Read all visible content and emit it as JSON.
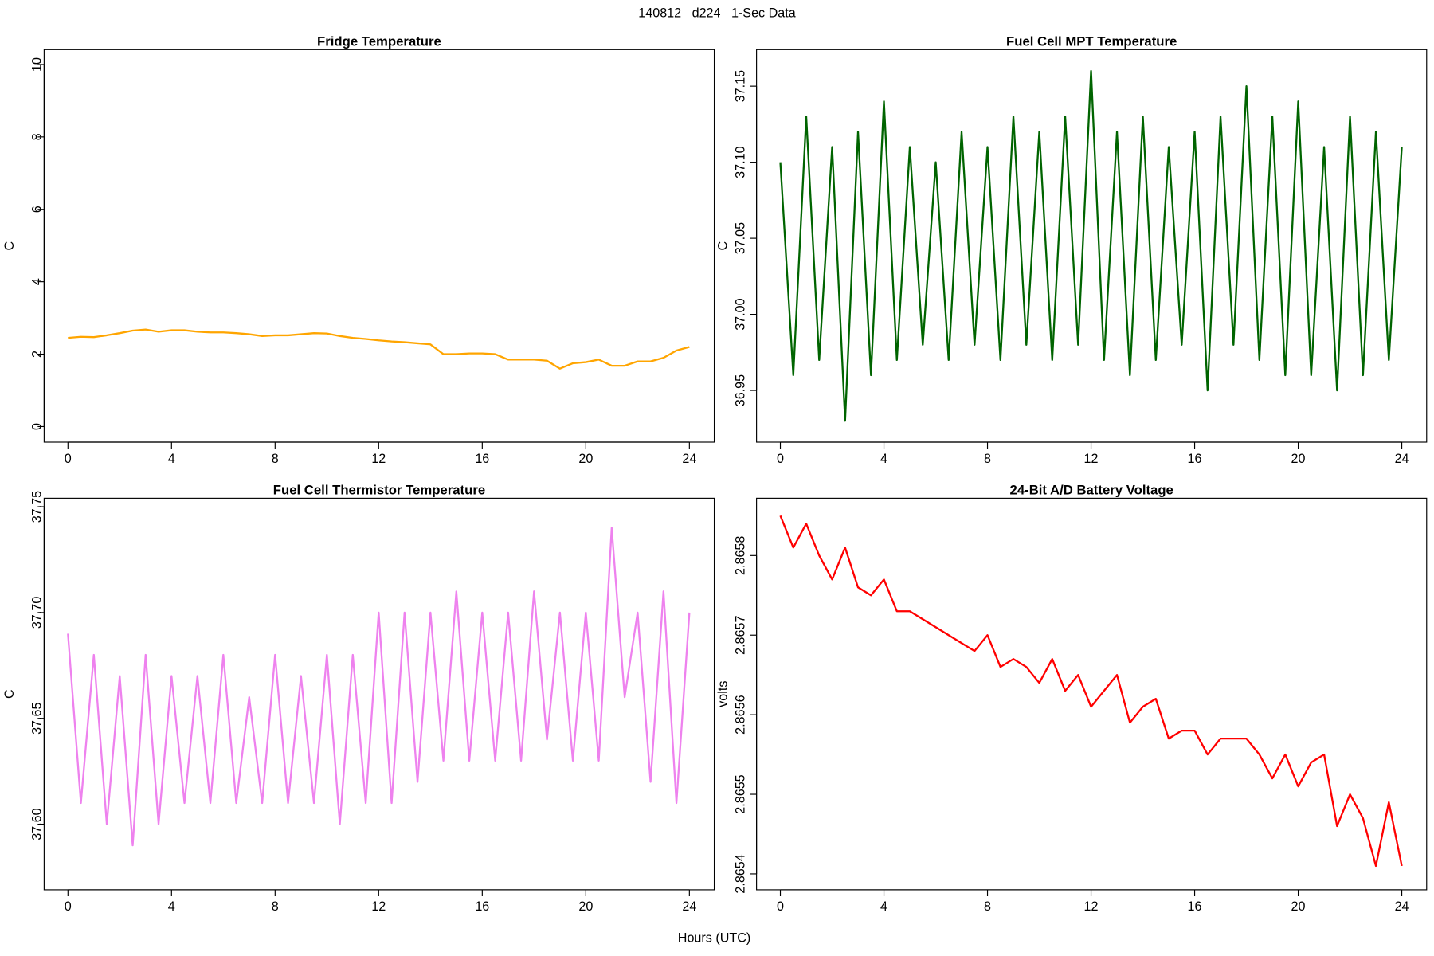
{
  "title": "140812   d224   1-Sec Data",
  "xlabel": "Hours (UTC)",
  "chart_data": [
    {
      "type": "line",
      "title": "Fridge Temperature",
      "ylabel": "C",
      "color": "#ffa500",
      "x": [
        0,
        0.5,
        1,
        1.5,
        2,
        2.5,
        3,
        3.5,
        4,
        4.5,
        5,
        5.5,
        6,
        6.5,
        7,
        7.5,
        8,
        8.5,
        9,
        9.5,
        10,
        10.5,
        11,
        11.5,
        12,
        12.5,
        13,
        13.5,
        14,
        14.5,
        15,
        15.5,
        16,
        16.5,
        17,
        17.5,
        18,
        18.5,
        19,
        19.5,
        20,
        20.5,
        21,
        21.5,
        22,
        22.5,
        23,
        23.5,
        24
      ],
      "values": [
        2.45,
        2.48,
        2.47,
        2.52,
        2.58,
        2.65,
        2.68,
        2.62,
        2.66,
        2.66,
        2.62,
        2.6,
        2.6,
        2.58,
        2.55,
        2.5,
        2.52,
        2.52,
        2.55,
        2.58,
        2.57,
        2.5,
        2.45,
        2.42,
        2.38,
        2.35,
        2.33,
        2.3,
        2.27,
        2.0,
        2.0,
        2.02,
        2.02,
        2.0,
        1.85,
        1.85,
        1.85,
        1.82,
        1.6,
        1.75,
        1.78,
        1.85,
        1.68,
        1.68,
        1.8,
        1.8,
        1.9,
        2.1,
        2.2
      ],
      "xlim": [
        -0.92,
        24.96
      ],
      "ylim": [
        -0.43,
        10.41
      ],
      "xticks": [
        0,
        4,
        8,
        12,
        16,
        20,
        24
      ],
      "yticks": [
        0,
        2,
        4,
        6,
        8,
        10
      ]
    },
    {
      "type": "line",
      "title": "Fuel Cell MPT Temperature",
      "ylabel": "C",
      "color": "#006400",
      "x": [
        0,
        0.5,
        1,
        1.5,
        2,
        2.5,
        3,
        3.5,
        4,
        4.5,
        5,
        5.5,
        6,
        6.5,
        7,
        7.5,
        8,
        8.5,
        9,
        9.5,
        10,
        10.5,
        11,
        11.5,
        12,
        12.5,
        13,
        13.5,
        14,
        14.5,
        15,
        15.5,
        16,
        16.5,
        17,
        17.5,
        18,
        18.5,
        19,
        19.5,
        20,
        20.5,
        21,
        21.5,
        22,
        22.5,
        23,
        23.5,
        24
      ],
      "values": [
        37.1,
        36.96,
        37.13,
        36.97,
        37.11,
        36.93,
        37.12,
        36.96,
        37.14,
        36.97,
        37.11,
        36.98,
        37.1,
        36.97,
        37.12,
        36.98,
        37.11,
        36.97,
        37.13,
        36.98,
        37.12,
        36.97,
        37.13,
        36.98,
        37.16,
        36.97,
        37.12,
        36.96,
        37.13,
        36.97,
        37.11,
        36.98,
        37.12,
        36.95,
        37.13,
        36.98,
        37.15,
        36.97,
        37.13,
        36.96,
        37.14,
        36.96,
        37.11,
        36.95,
        37.13,
        36.96,
        37.12,
        36.97,
        37.11
      ],
      "xlim": [
        -0.92,
        24.96
      ],
      "ylim": [
        36.916,
        37.174
      ],
      "xticks": [
        0,
        4,
        8,
        12,
        16,
        20,
        24
      ],
      "yticks": [
        36.95,
        {
          "value": 37.0,
          "label": "37.00"
        },
        37.05,
        {
          "value": 37.1,
          "label": "37.10"
        },
        37.15
      ]
    },
    {
      "type": "line",
      "title": "Fuel Cell Thermistor Temperature",
      "ylabel": "C",
      "color": "#ee82ee",
      "x": [
        0,
        0.5,
        1,
        1.5,
        2,
        2.5,
        3,
        3.5,
        4,
        4.5,
        5,
        5.5,
        6,
        6.5,
        7,
        7.5,
        8,
        8.5,
        9,
        9.5,
        10,
        10.5,
        11,
        11.5,
        12,
        12.5,
        13,
        13.5,
        14,
        14.5,
        15,
        15.5,
        16,
        16.5,
        17,
        17.5,
        18,
        18.5,
        19,
        19.5,
        20,
        20.5,
        21,
        21.5,
        22,
        22.5,
        23,
        23.5,
        24
      ],
      "values": [
        37.69,
        37.61,
        37.68,
        37.6,
        37.67,
        37.59,
        37.68,
        37.6,
        37.67,
        37.61,
        37.67,
        37.61,
        37.68,
        37.61,
        37.66,
        37.61,
        37.68,
        37.61,
        37.67,
        37.61,
        37.68,
        37.6,
        37.68,
        37.61,
        37.7,
        37.61,
        37.7,
        37.62,
        37.7,
        37.63,
        37.71,
        37.63,
        37.7,
        37.63,
        37.7,
        37.63,
        37.71,
        37.64,
        37.7,
        37.63,
        37.7,
        37.63,
        37.74,
        37.66,
        37.7,
        37.62,
        37.71,
        37.61,
        37.7
      ],
      "xlim": [
        -0.92,
        24.96
      ],
      "ylim": [
        37.569,
        37.754
      ],
      "xticks": [
        0,
        4,
        8,
        12,
        16,
        20,
        24
      ],
      "yticks": [
        {
          "value": 37.6,
          "label": "37.60"
        },
        37.65,
        {
          "value": 37.7,
          "label": "37.70"
        },
        37.75
      ]
    },
    {
      "type": "line",
      "title": "24-Bit A/D Battery Voltage",
      "ylabel": "volts",
      "color": "#ff0000",
      "x": [
        0,
        0.5,
        1,
        1.5,
        2,
        2.5,
        3,
        3.5,
        4,
        4.5,
        5,
        5.5,
        6,
        6.5,
        7,
        7.5,
        8,
        8.5,
        9,
        9.5,
        10,
        10.5,
        11,
        11.5,
        12,
        12.5,
        13,
        13.5,
        14,
        14.5,
        15,
        15.5,
        16,
        16.5,
        17,
        17.5,
        18,
        18.5,
        19,
        19.5,
        20,
        20.5,
        21,
        21.5,
        22,
        22.5,
        23,
        23.5,
        24
      ],
      "values": [
        2.86585,
        2.86581,
        2.86584,
        2.8658,
        2.86577,
        2.86581,
        2.86576,
        2.86575,
        2.86577,
        2.86573,
        2.86573,
        2.86572,
        2.86571,
        2.8657,
        2.86569,
        2.86568,
        2.8657,
        2.86566,
        2.86567,
        2.86566,
        2.86564,
        2.86567,
        2.86563,
        2.86565,
        2.86561,
        2.86563,
        2.86565,
        2.86559,
        2.86561,
        2.86562,
        2.86557,
        2.86558,
        2.86558,
        2.86555,
        2.86557,
        2.86557,
        2.86557,
        2.86555,
        2.86552,
        2.86555,
        2.86551,
        2.86554,
        2.86555,
        2.86546,
        2.8655,
        2.86547,
        2.86541,
        2.86549,
        2.86541
      ],
      "xlim": [
        -0.92,
        24.96
      ],
      "ylim": [
        2.86538,
        2.865872
      ],
      "xticks": [
        0,
        4,
        8,
        12,
        16,
        20,
        24
      ],
      "yticks": [
        2.8654,
        2.8655,
        2.8656,
        2.8657,
        2.8658
      ]
    }
  ]
}
